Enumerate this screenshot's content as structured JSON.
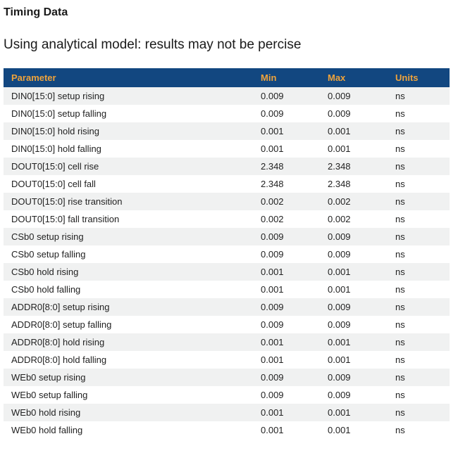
{
  "page": {
    "title": "Timing Data",
    "subtitle": "Using analytical model: results may not be percise"
  },
  "table": {
    "columns": [
      "Parameter",
      "Min",
      "Max",
      "Units"
    ],
    "rows": [
      {
        "parameter": "DIN0[15:0] setup rising",
        "min": "0.009",
        "max": "0.009",
        "units": "ns"
      },
      {
        "parameter": "DIN0[15:0] setup falling",
        "min": "0.009",
        "max": "0.009",
        "units": "ns"
      },
      {
        "parameter": "DIN0[15:0] hold rising",
        "min": "0.001",
        "max": "0.001",
        "units": "ns"
      },
      {
        "parameter": "DIN0[15:0] hold falling",
        "min": "0.001",
        "max": "0.001",
        "units": "ns"
      },
      {
        "parameter": "DOUT0[15:0] cell rise",
        "min": "2.348",
        "max": "2.348",
        "units": "ns"
      },
      {
        "parameter": "DOUT0[15:0] cell fall",
        "min": "2.348",
        "max": "2.348",
        "units": "ns"
      },
      {
        "parameter": "DOUT0[15:0] rise transition",
        "min": "0.002",
        "max": "0.002",
        "units": "ns"
      },
      {
        "parameter": "DOUT0[15:0] fall transition",
        "min": "0.002",
        "max": "0.002",
        "units": "ns"
      },
      {
        "parameter": "CSb0 setup rising",
        "min": "0.009",
        "max": "0.009",
        "units": "ns"
      },
      {
        "parameter": "CSb0 setup falling",
        "min": "0.009",
        "max": "0.009",
        "units": "ns"
      },
      {
        "parameter": "CSb0 hold rising",
        "min": "0.001",
        "max": "0.001",
        "units": "ns"
      },
      {
        "parameter": "CSb0 hold falling",
        "min": "0.001",
        "max": "0.001",
        "units": "ns"
      },
      {
        "parameter": "ADDR0[8:0] setup rising",
        "min": "0.009",
        "max": "0.009",
        "units": "ns"
      },
      {
        "parameter": "ADDR0[8:0] setup falling",
        "min": "0.009",
        "max": "0.009",
        "units": "ns"
      },
      {
        "parameter": "ADDR0[8:0] hold rising",
        "min": "0.001",
        "max": "0.001",
        "units": "ns"
      },
      {
        "parameter": "ADDR0[8:0] hold falling",
        "min": "0.001",
        "max": "0.001",
        "units": "ns"
      },
      {
        "parameter": "WEb0 setup rising",
        "min": "0.009",
        "max": "0.009",
        "units": "ns"
      },
      {
        "parameter": "WEb0 setup falling",
        "min": "0.009",
        "max": "0.009",
        "units": "ns"
      },
      {
        "parameter": "WEb0 hold rising",
        "min": "0.001",
        "max": "0.001",
        "units": "ns"
      },
      {
        "parameter": "WEb0 hold falling",
        "min": "0.001",
        "max": "0.001",
        "units": "ns"
      }
    ]
  },
  "colors": {
    "header_bg": "#124780",
    "header_text": "#EFA33B",
    "row_alt_bg": "#F0F1F1",
    "body_text": "#222222"
  }
}
